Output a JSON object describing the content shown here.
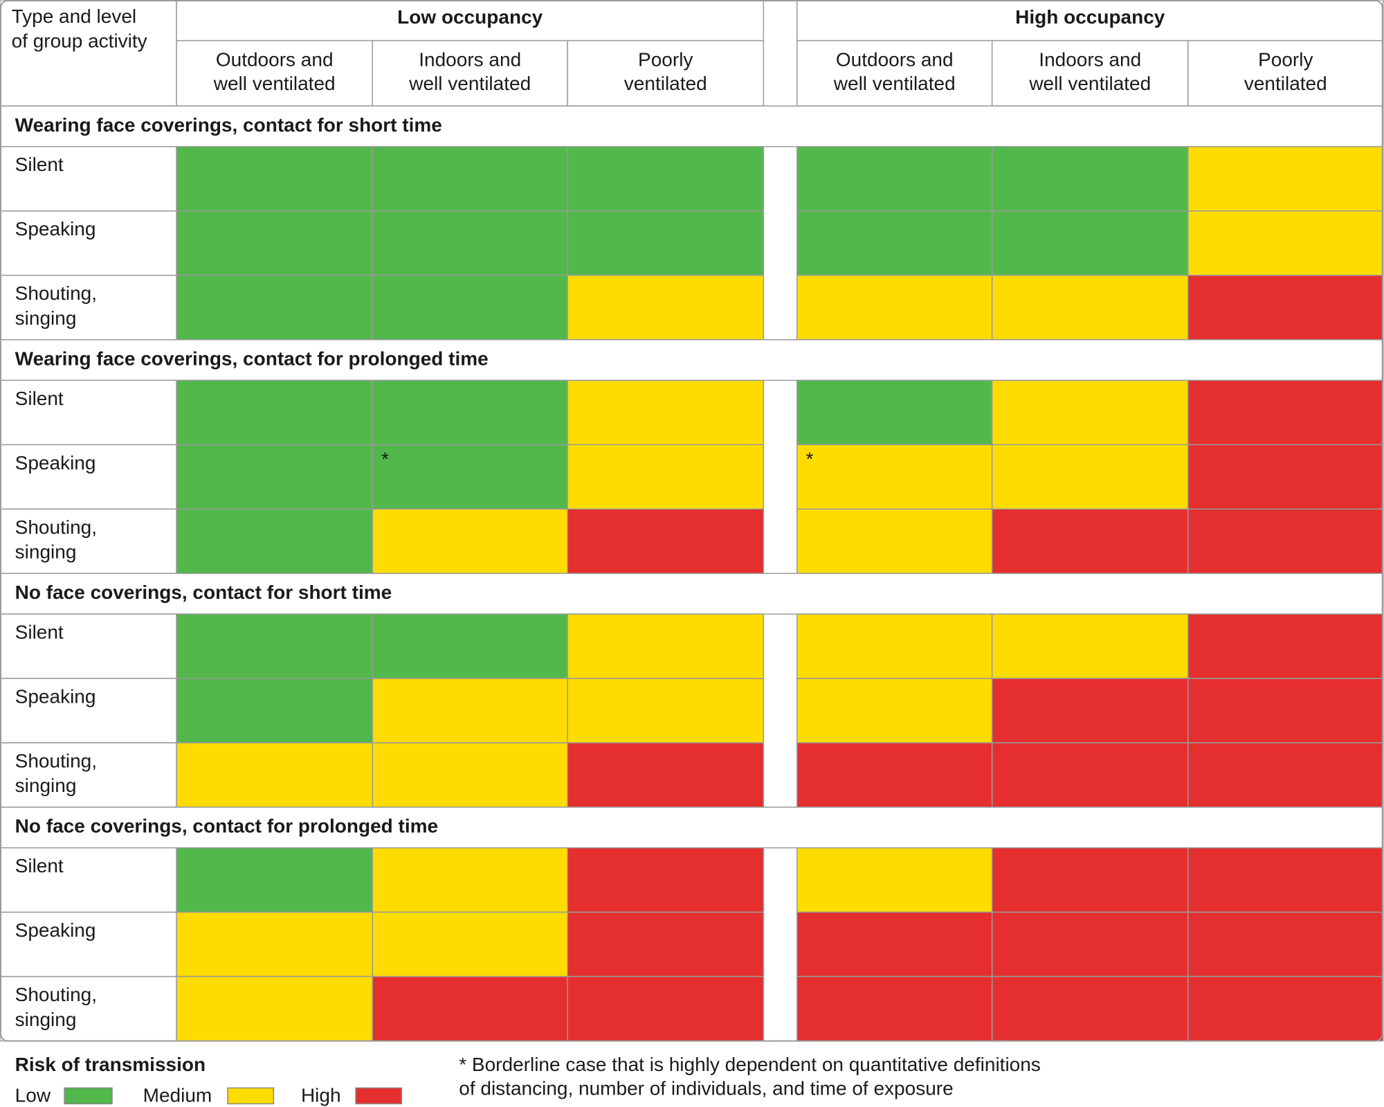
{
  "header": {
    "corner": [
      "Type and level",
      "of group activity"
    ],
    "groups": [
      {
        "title": "Low occupancy",
        "columns": [
          [
            "Outdoors and",
            "well ventilated"
          ],
          [
            "Indoors and",
            "well ventilated"
          ],
          [
            "Poorly",
            "ventilated"
          ]
        ]
      },
      {
        "title": "High occupancy",
        "columns": [
          [
            "Outdoors and",
            "well ventilated"
          ],
          [
            "Indoors and",
            "well ventilated"
          ],
          [
            "Poorly",
            "ventilated"
          ]
        ]
      }
    ]
  },
  "sections": [
    {
      "title": "Wearing face coverings, contact for short time",
      "rows": [
        {
          "label": [
            "Silent"
          ],
          "cells": [
            0,
            0,
            0,
            0,
            0,
            1
          ]
        },
        {
          "label": [
            "Speaking"
          ],
          "cells": [
            0,
            0,
            0,
            0,
            0,
            1
          ]
        },
        {
          "label": [
            "Shouting,",
            "singing"
          ],
          "cells": [
            0,
            0,
            1,
            1,
            1,
            2
          ]
        }
      ]
    },
    {
      "title": "Wearing face coverings, contact for prolonged time",
      "rows": [
        {
          "label": [
            "Silent"
          ],
          "cells": [
            0,
            0,
            1,
            0,
            1,
            2
          ]
        },
        {
          "label": [
            "Speaking"
          ],
          "cells": [
            0,
            {
              "risk": 0,
              "note": "*"
            },
            1,
            {
              "risk": 1,
              "note": "*"
            },
            1,
            2
          ]
        },
        {
          "label": [
            "Shouting,",
            "singing"
          ],
          "cells": [
            0,
            1,
            2,
            1,
            2,
            2
          ]
        }
      ]
    },
    {
      "title": "No face coverings, contact for short time",
      "rows": [
        {
          "label": [
            "Silent"
          ],
          "cells": [
            0,
            0,
            1,
            1,
            1,
            2
          ]
        },
        {
          "label": [
            "Speaking"
          ],
          "cells": [
            0,
            1,
            1,
            1,
            2,
            2
          ]
        },
        {
          "label": [
            "Shouting,",
            "singing"
          ],
          "cells": [
            1,
            1,
            2,
            2,
            2,
            2
          ]
        }
      ]
    },
    {
      "title": "No face coverings, contact for prolonged time",
      "rows": [
        {
          "label": [
            "Silent"
          ],
          "cells": [
            0,
            1,
            2,
            1,
            2,
            2
          ]
        },
        {
          "label": [
            "Speaking"
          ],
          "cells": [
            1,
            1,
            2,
            2,
            2,
            2
          ]
        },
        {
          "label": [
            "Shouting,",
            "singing"
          ],
          "cells": [
            1,
            2,
            2,
            2,
            2,
            2
          ]
        }
      ]
    }
  ],
  "legend": {
    "title": "Risk of transmission",
    "levels": [
      {
        "label": "Low",
        "color": "#52b84b"
      },
      {
        "label": "Medium",
        "color": "#fedc00"
      },
      {
        "label": "High",
        "color": "#e52e2e"
      }
    ]
  },
  "footnote": [
    "* Borderline case that is highly dependent on quantitative definitions",
    "of distancing, number of individuals, and time of exposure"
  ]
}
